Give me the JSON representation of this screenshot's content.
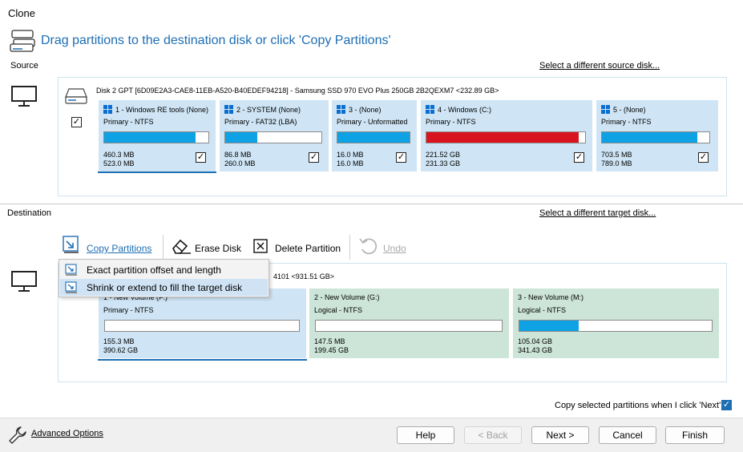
{
  "window": {
    "title": "Clone"
  },
  "header": {
    "title": "Drag partitions to the destination disk or click 'Copy Partitions'"
  },
  "source": {
    "label": "Source",
    "change_link": "Select a different source disk...",
    "disk_label": "Disk 2 GPT [6D09E2A3-CAE8-11EB-A520-B40EDEF94218] - Samsung SSD 970 EVO Plus 250GB 2B2QEXM7  <232.89 GB>",
    "disk_checked": true,
    "partitions": [
      {
        "name": "1 - Windows RE tools (None)",
        "type": "Primary - NTFS",
        "used": "460.3 MB",
        "total": "523.0 MB",
        "fill": 0.88,
        "fill_color": "#0ea2e4",
        "checked": true
      },
      {
        "name": "2 - SYSTEM (None)",
        "type": "Primary - FAT32 (LBA)",
        "used": "86.8 MB",
        "total": "260.0 MB",
        "fill": 0.33,
        "fill_color": "#0ea2e4",
        "checked": true
      },
      {
        "name": "3 -  (None)",
        "type": "Primary - Unformatted",
        "used": "16.0 MB",
        "total": "16.0 MB",
        "fill": 1.0,
        "fill_color": "#0ea2e4",
        "checked": true
      },
      {
        "name": "4 - Windows (C:)",
        "type": "Primary - NTFS",
        "used": "221.52 GB",
        "total": "231.33 GB",
        "fill": 0.96,
        "fill_color": "#d7141f",
        "checked": true
      },
      {
        "name": "5 -  (None)",
        "type": "Primary - NTFS",
        "used": "703.5 MB",
        "total": "789.0 MB",
        "fill": 0.89,
        "fill_color": "#0ea2e4",
        "checked": true
      }
    ]
  },
  "destination": {
    "label": "Destination",
    "change_link": "Select a different target disk...",
    "disk_label_visible": "4101  <931.51 GB>",
    "partitions": [
      {
        "name": "1 - New Volume (F:)",
        "type": "Primary - NTFS",
        "used": "155.3 MB",
        "total": "390.62 GB",
        "fill": 0.0
      },
      {
        "name": "2 - New Volume (G:)",
        "type": "Logical - NTFS",
        "used": "147.5 MB",
        "total": "199.45 GB",
        "fill": 0.0
      },
      {
        "name": "3 - New Volume (M:)",
        "type": "Logical - NTFS",
        "used": "105.04 GB",
        "total": "341.43 GB",
        "fill": 0.31
      }
    ]
  },
  "toolbar": {
    "copy_partitions": "Copy Partitions",
    "erase_disk": "Erase Disk",
    "delete_partition": "Delete Partition",
    "undo": "Undo"
  },
  "dropdown": {
    "items": [
      {
        "label": "Exact partition offset and length"
      },
      {
        "label": "Shrink or extend to fill the target disk"
      }
    ]
  },
  "copy_selected": {
    "label": "Copy selected partitions when I click 'Next'",
    "checked": true
  },
  "footer": {
    "advanced_options": "Advanced Options",
    "help": "Help",
    "back": "< Back",
    "next": "Next >",
    "cancel": "Cancel",
    "finish": "Finish"
  }
}
